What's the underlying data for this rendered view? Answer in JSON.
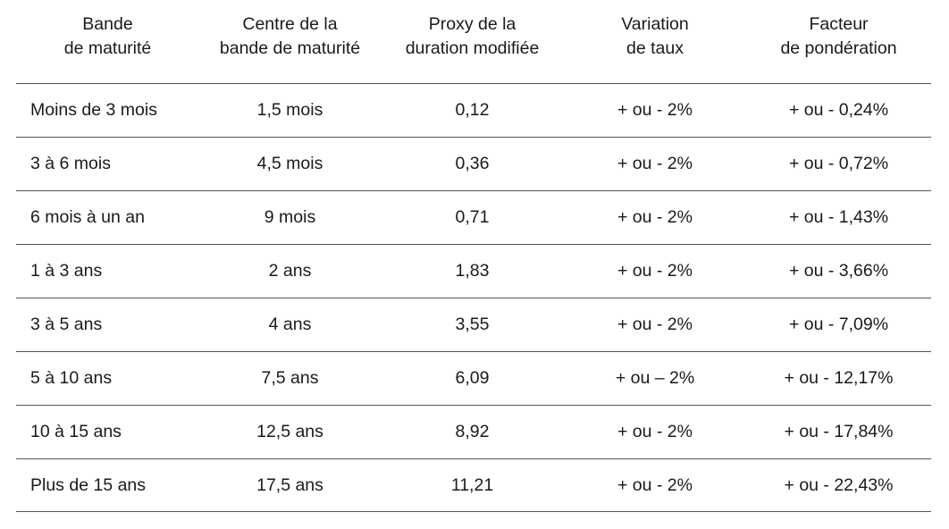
{
  "table": {
    "headers": [
      {
        "line1": "Bande",
        "line2": "de maturité"
      },
      {
        "line1": "Centre de la",
        "line2": "bande de maturité"
      },
      {
        "line1": "Proxy de la",
        "line2": "duration modifiée"
      },
      {
        "line1": "Variation",
        "line2": "de taux"
      },
      {
        "line1": "Facteur",
        "line2": "de pondération"
      }
    ],
    "rows": [
      [
        "Moins de 3 mois",
        "1,5 mois",
        "0,12",
        "+ ou - 2%",
        "+ ou - 0,24%"
      ],
      [
        "3 à 6 mois",
        "4,5 mois",
        "0,36",
        "+ ou - 2%",
        "+ ou - 0,72%"
      ],
      [
        "6 mois à un an",
        "9 mois",
        "0,71",
        "+ ou - 2%",
        "+ ou - 1,43%"
      ],
      [
        "1 à 3 ans",
        "2 ans",
        "1,83",
        "+ ou - 2%",
        "+ ou - 3,66%"
      ],
      [
        "3 à 5 ans",
        "4 ans",
        "3,55",
        "+ ou - 2%",
        "+ ou - 7,09%"
      ],
      [
        "5 à 10 ans",
        "7,5 ans",
        "6,09",
        "+ ou – 2%",
        "+ ou - 12,17%"
      ],
      [
        "10 à 15 ans",
        "12,5 ans",
        "8,92",
        "+ ou - 2%",
        "+ ou - 17,84%"
      ],
      [
        "Plus de 15 ans",
        "17,5 ans",
        "11,21",
        "+ ou - 2%",
        "+ ou - 22,43%"
      ]
    ]
  }
}
